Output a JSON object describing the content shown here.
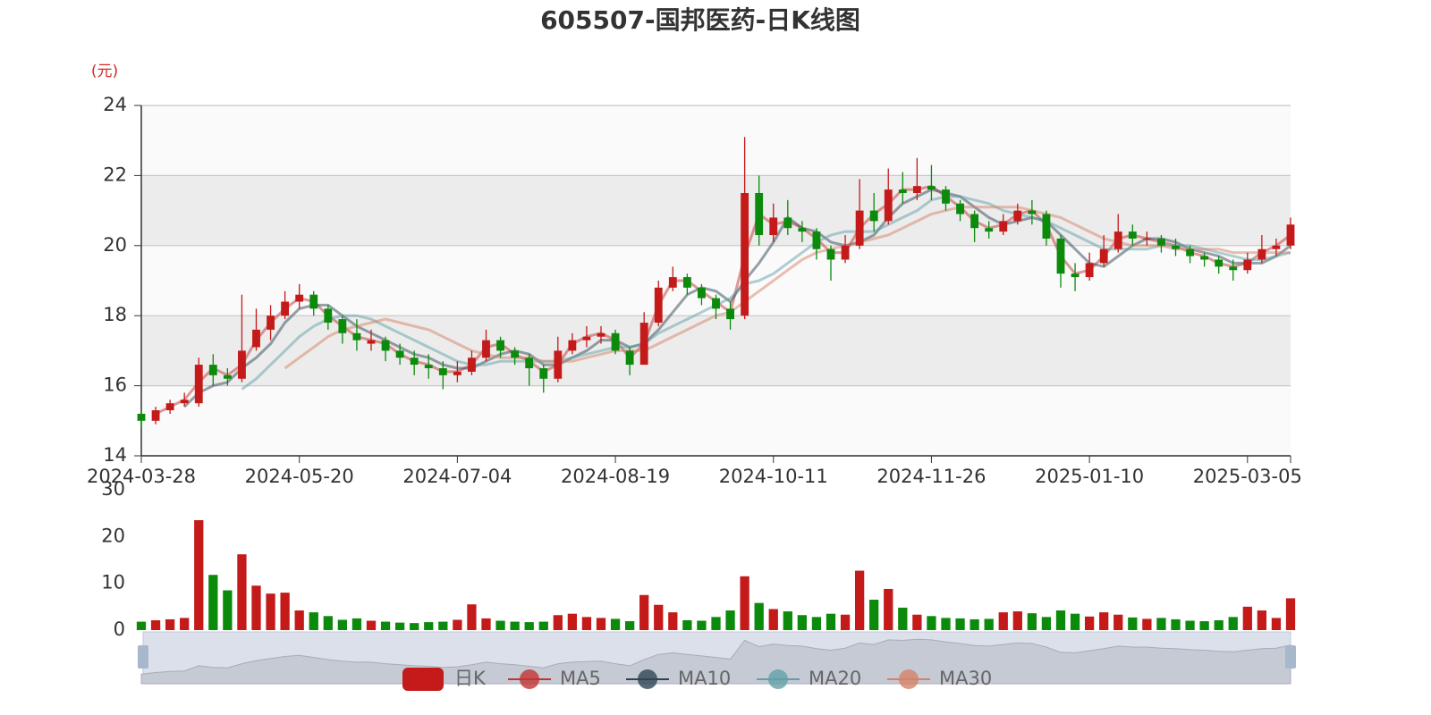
{
  "chart_data": {
    "type": "candlestick",
    "title": "605507-国邦医药-日K线图",
    "y_unit": "(元)",
    "categories": [
      "2024-03-28",
      null,
      null,
      null,
      null,
      null,
      null,
      null,
      null,
      null,
      null,
      "2024-05-20",
      null,
      null,
      null,
      null,
      null,
      null,
      null,
      null,
      null,
      null,
      "2024-07-04",
      null,
      null,
      null,
      null,
      null,
      null,
      null,
      null,
      null,
      null,
      "2024-08-19",
      null,
      null,
      null,
      null,
      null,
      null,
      null,
      null,
      null,
      null,
      "2024-10-11",
      null,
      null,
      null,
      null,
      null,
      null,
      null,
      null,
      null,
      null,
      "2024-11-26",
      null,
      null,
      null,
      null,
      null,
      null,
      null,
      null,
      null,
      null,
      "2025-01-10",
      null,
      null,
      null,
      null,
      null,
      null,
      null,
      null,
      null,
      null,
      "2025-03-05",
      null,
      null,
      null
    ],
    "ylim": [
      14,
      24
    ],
    "yticks": [
      14,
      16,
      18,
      20,
      22,
      24
    ],
    "grid": true,
    "series": [
      {
        "name": "日K",
        "up_color": "#c41a1a",
        "down_color": "#0b8a0b",
        "values": [
          [
            15.2,
            15.0,
            14.8,
            15.3
          ],
          [
            15.0,
            15.3,
            14.9,
            15.4
          ],
          [
            15.3,
            15.5,
            15.2,
            15.6
          ],
          [
            15.5,
            15.6,
            15.4,
            15.8
          ],
          [
            15.5,
            16.6,
            15.4,
            16.8
          ],
          [
            16.6,
            16.3,
            16.0,
            16.9
          ],
          [
            16.3,
            16.2,
            16.0,
            16.5
          ],
          [
            16.2,
            17.0,
            16.1,
            18.6
          ],
          [
            17.1,
            17.6,
            17.0,
            18.2
          ],
          [
            17.6,
            18.0,
            17.3,
            18.3
          ],
          [
            18.0,
            18.4,
            17.9,
            18.7
          ],
          [
            18.4,
            18.6,
            18.2,
            18.9
          ],
          [
            18.6,
            18.2,
            18.0,
            18.7
          ],
          [
            18.2,
            17.8,
            17.6,
            18.3
          ],
          [
            17.9,
            17.5,
            17.2,
            18.0
          ],
          [
            17.5,
            17.3,
            17.0,
            17.9
          ],
          [
            17.2,
            17.3,
            17.0,
            17.6
          ],
          [
            17.3,
            17.0,
            16.7,
            17.4
          ],
          [
            17.0,
            16.8,
            16.6,
            17.2
          ],
          [
            16.8,
            16.6,
            16.3,
            17.0
          ],
          [
            16.6,
            16.5,
            16.2,
            16.9
          ],
          [
            16.5,
            16.3,
            15.9,
            16.7
          ],
          [
            16.3,
            16.4,
            16.1,
            16.7
          ],
          [
            16.4,
            16.8,
            16.3,
            17.0
          ],
          [
            16.8,
            17.3,
            16.7,
            17.6
          ],
          [
            17.3,
            17.0,
            16.8,
            17.4
          ],
          [
            17.0,
            16.8,
            16.6,
            17.1
          ],
          [
            16.8,
            16.5,
            16.0,
            16.9
          ],
          [
            16.5,
            16.2,
            15.8,
            16.6
          ],
          [
            16.2,
            17.0,
            16.1,
            17.4
          ],
          [
            17.0,
            17.3,
            16.9,
            17.5
          ],
          [
            17.3,
            17.4,
            17.1,
            17.7
          ],
          [
            17.4,
            17.5,
            17.2,
            17.7
          ],
          [
            17.5,
            17.0,
            16.9,
            17.6
          ],
          [
            17.0,
            16.6,
            16.3,
            17.1
          ],
          [
            16.6,
            17.8,
            16.6,
            18.1
          ],
          [
            17.8,
            18.8,
            17.7,
            19.0
          ],
          [
            18.8,
            19.1,
            18.7,
            19.4
          ],
          [
            19.1,
            18.8,
            18.6,
            19.2
          ],
          [
            18.8,
            18.5,
            18.3,
            18.9
          ],
          [
            18.5,
            18.2,
            17.9,
            18.6
          ],
          [
            18.2,
            17.9,
            17.6,
            18.4
          ],
          [
            18.0,
            21.5,
            17.9,
            23.1
          ],
          [
            21.5,
            20.3,
            20.0,
            22.0
          ],
          [
            20.3,
            20.8,
            20.1,
            21.2
          ],
          [
            20.8,
            20.5,
            20.3,
            21.3
          ],
          [
            20.5,
            20.4,
            20.1,
            20.7
          ],
          [
            20.4,
            19.9,
            19.6,
            20.5
          ],
          [
            19.9,
            19.6,
            19.0,
            20.0
          ],
          [
            19.6,
            20.0,
            19.5,
            20.3
          ],
          [
            20.0,
            21.0,
            19.9,
            21.9
          ],
          [
            21.0,
            20.7,
            20.4,
            21.5
          ],
          [
            20.7,
            21.6,
            20.6,
            22.2
          ],
          [
            21.6,
            21.5,
            21.2,
            22.1
          ],
          [
            21.5,
            21.7,
            21.3,
            22.5
          ],
          [
            21.7,
            21.6,
            21.3,
            22.3
          ],
          [
            21.6,
            21.2,
            21.0,
            21.7
          ],
          [
            21.2,
            20.9,
            20.7,
            21.3
          ],
          [
            20.9,
            20.5,
            20.1,
            21.0
          ],
          [
            20.5,
            20.4,
            20.2,
            20.7
          ],
          [
            20.4,
            20.7,
            20.3,
            20.9
          ],
          [
            20.7,
            21.0,
            20.6,
            21.2
          ],
          [
            21.0,
            20.9,
            20.6,
            21.3
          ],
          [
            20.9,
            20.2,
            20.0,
            21.0
          ],
          [
            20.2,
            19.2,
            18.8,
            20.3
          ],
          [
            19.2,
            19.1,
            18.7,
            19.5
          ],
          [
            19.1,
            19.5,
            19.0,
            19.8
          ],
          [
            19.5,
            19.9,
            19.4,
            20.3
          ],
          [
            19.9,
            20.4,
            19.8,
            20.9
          ],
          [
            20.4,
            20.2,
            20.0,
            20.6
          ],
          [
            20.2,
            20.2,
            20.0,
            20.4
          ],
          [
            20.2,
            20.0,
            19.8,
            20.3
          ],
          [
            20.0,
            19.9,
            19.7,
            20.2
          ],
          [
            19.9,
            19.7,
            19.5,
            20.0
          ],
          [
            19.7,
            19.6,
            19.4,
            19.8
          ],
          [
            19.6,
            19.4,
            19.2,
            19.7
          ],
          [
            19.4,
            19.3,
            19.0,
            19.6
          ],
          [
            19.3,
            19.6,
            19.2,
            19.8
          ],
          [
            19.6,
            19.9,
            19.5,
            20.3
          ],
          [
            19.9,
            20.0,
            19.7,
            20.2
          ],
          [
            20.0,
            20.6,
            19.9,
            20.8
          ]
        ]
      },
      {
        "name": "MA5",
        "color": "#c23531",
        "values": [
          null,
          15.2,
          15.4,
          15.6,
          16.1,
          16.5,
          16.3,
          16.6,
          17.3,
          17.8,
          18.2,
          18.5,
          18.4,
          18.0,
          17.7,
          17.4,
          17.3,
          17.2,
          16.9,
          16.7,
          16.6,
          16.4,
          16.4,
          16.6,
          17.1,
          17.2,
          16.9,
          16.7,
          16.4,
          16.6,
          17.2,
          17.4,
          17.5,
          17.3,
          16.8,
          17.2,
          18.3,
          19.0,
          19.0,
          18.7,
          18.4,
          18.1,
          19.7,
          20.9,
          20.6,
          20.7,
          20.5,
          20.2,
          19.8,
          19.8,
          20.5,
          20.9,
          21.2,
          21.6,
          21.6,
          21.7,
          21.4,
          21.1,
          20.7,
          20.5,
          20.6,
          20.9,
          21.0,
          20.6,
          19.7,
          19.2,
          19.3,
          19.7,
          20.2,
          20.3,
          20.2,
          20.1,
          20.0,
          19.8,
          19.7,
          19.5,
          19.4,
          19.5,
          19.8,
          20.0,
          20.3
        ]
      },
      {
        "name": "MA10",
        "color": "#2f4554",
        "values": [
          null,
          null,
          null,
          15.4,
          15.8,
          16.0,
          16.1,
          16.5,
          16.8,
          17.2,
          17.8,
          18.2,
          18.3,
          18.3,
          18.0,
          17.7,
          17.5,
          17.3,
          17.1,
          16.9,
          16.8,
          16.6,
          16.5,
          16.5,
          16.7,
          16.9,
          17.0,
          16.9,
          16.6,
          16.6,
          16.8,
          17.0,
          17.3,
          17.3,
          17.1,
          17.2,
          17.6,
          18.1,
          18.6,
          18.8,
          18.7,
          18.4,
          19.0,
          19.5,
          20.1,
          20.8,
          20.5,
          20.4,
          20.1,
          20.0,
          20.1,
          20.3,
          20.8,
          21.2,
          21.4,
          21.6,
          21.5,
          21.4,
          21.1,
          20.8,
          20.6,
          20.7,
          20.8,
          20.7,
          20.3,
          19.9,
          19.5,
          19.4,
          19.7,
          20.0,
          20.2,
          20.2,
          20.1,
          19.9,
          19.8,
          19.7,
          19.5,
          19.5,
          19.5,
          19.7,
          20.0
        ]
      },
      {
        "name": "MA20",
        "color": "#61a0a8",
        "values": [
          null,
          null,
          null,
          null,
          null,
          null,
          null,
          15.9,
          16.2,
          16.6,
          17.0,
          17.4,
          17.7,
          17.9,
          18.0,
          18.0,
          17.9,
          17.7,
          17.5,
          17.3,
          17.1,
          16.9,
          16.7,
          16.6,
          16.6,
          16.7,
          16.7,
          16.7,
          16.7,
          16.7,
          16.8,
          16.9,
          17.0,
          17.1,
          17.1,
          17.2,
          17.5,
          17.7,
          17.9,
          18.1,
          18.3,
          18.5,
          18.9,
          19.0,
          19.2,
          19.5,
          19.8,
          20.1,
          20.3,
          20.4,
          20.4,
          20.4,
          20.6,
          20.8,
          21.0,
          21.3,
          21.4,
          21.4,
          21.3,
          21.2,
          21.0,
          20.9,
          20.8,
          20.7,
          20.5,
          20.3,
          20.1,
          19.9,
          19.9,
          19.9,
          19.9,
          20.0,
          20.0,
          20.0,
          19.9,
          19.8,
          19.7,
          19.6,
          19.6,
          19.7,
          19.8
        ]
      },
      {
        "name": "MA30",
        "color": "#d48265",
        "values": [
          null,
          null,
          null,
          null,
          null,
          null,
          null,
          null,
          null,
          null,
          16.5,
          16.8,
          17.1,
          17.4,
          17.6,
          17.7,
          17.8,
          17.9,
          17.8,
          17.7,
          17.6,
          17.4,
          17.2,
          17.0,
          16.9,
          16.8,
          16.8,
          16.8,
          16.7,
          16.7,
          16.7,
          16.8,
          16.9,
          17.0,
          17.0,
          17.0,
          17.2,
          17.4,
          17.6,
          17.8,
          18.0,
          18.1,
          18.4,
          18.7,
          19.0,
          19.3,
          19.6,
          19.8,
          19.9,
          20.0,
          20.1,
          20.2,
          20.3,
          20.5,
          20.7,
          20.9,
          21.0,
          21.1,
          21.1,
          21.1,
          21.1,
          21.1,
          21.0,
          20.9,
          20.8,
          20.6,
          20.4,
          20.2,
          20.1,
          20.0,
          20.0,
          20.0,
          19.9,
          19.9,
          19.9,
          19.9,
          19.8,
          19.8,
          19.8,
          19.8,
          19.8
        ]
      }
    ],
    "volume": {
      "ylim": [
        0,
        30
      ],
      "yticks": [
        0,
        10,
        20,
        30
      ],
      "values": [
        1.8,
        2.1,
        2.3,
        2.6,
        23.5,
        11.8,
        8.5,
        16.2,
        9.5,
        7.8,
        8.0,
        4.2,
        3.8,
        3.0,
        2.2,
        2.5,
        2.0,
        1.8,
        1.6,
        1.5,
        1.7,
        1.8,
        2.2,
        5.5,
        2.5,
        2.0,
        1.8,
        1.7,
        1.8,
        3.2,
        3.5,
        2.8,
        2.6,
        2.4,
        1.9,
        7.5,
        5.4,
        3.8,
        2.1,
        2.0,
        2.8,
        4.2,
        11.5,
        5.8,
        4.5,
        4.0,
        3.2,
        2.8,
        3.5,
        3.3,
        12.7,
        6.5,
        8.8,
        4.8,
        3.3,
        3.0,
        2.6,
        2.5,
        2.3,
        2.4,
        3.8,
        4.0,
        3.6,
        2.8,
        4.2,
        3.5,
        2.9,
        3.8,
        3.3,
        2.7,
        2.4,
        2.6,
        2.3,
        2.0,
        1.9,
        2.1,
        2.8,
        5.0,
        4.2,
        2.6,
        6.8
      ]
    }
  }
}
